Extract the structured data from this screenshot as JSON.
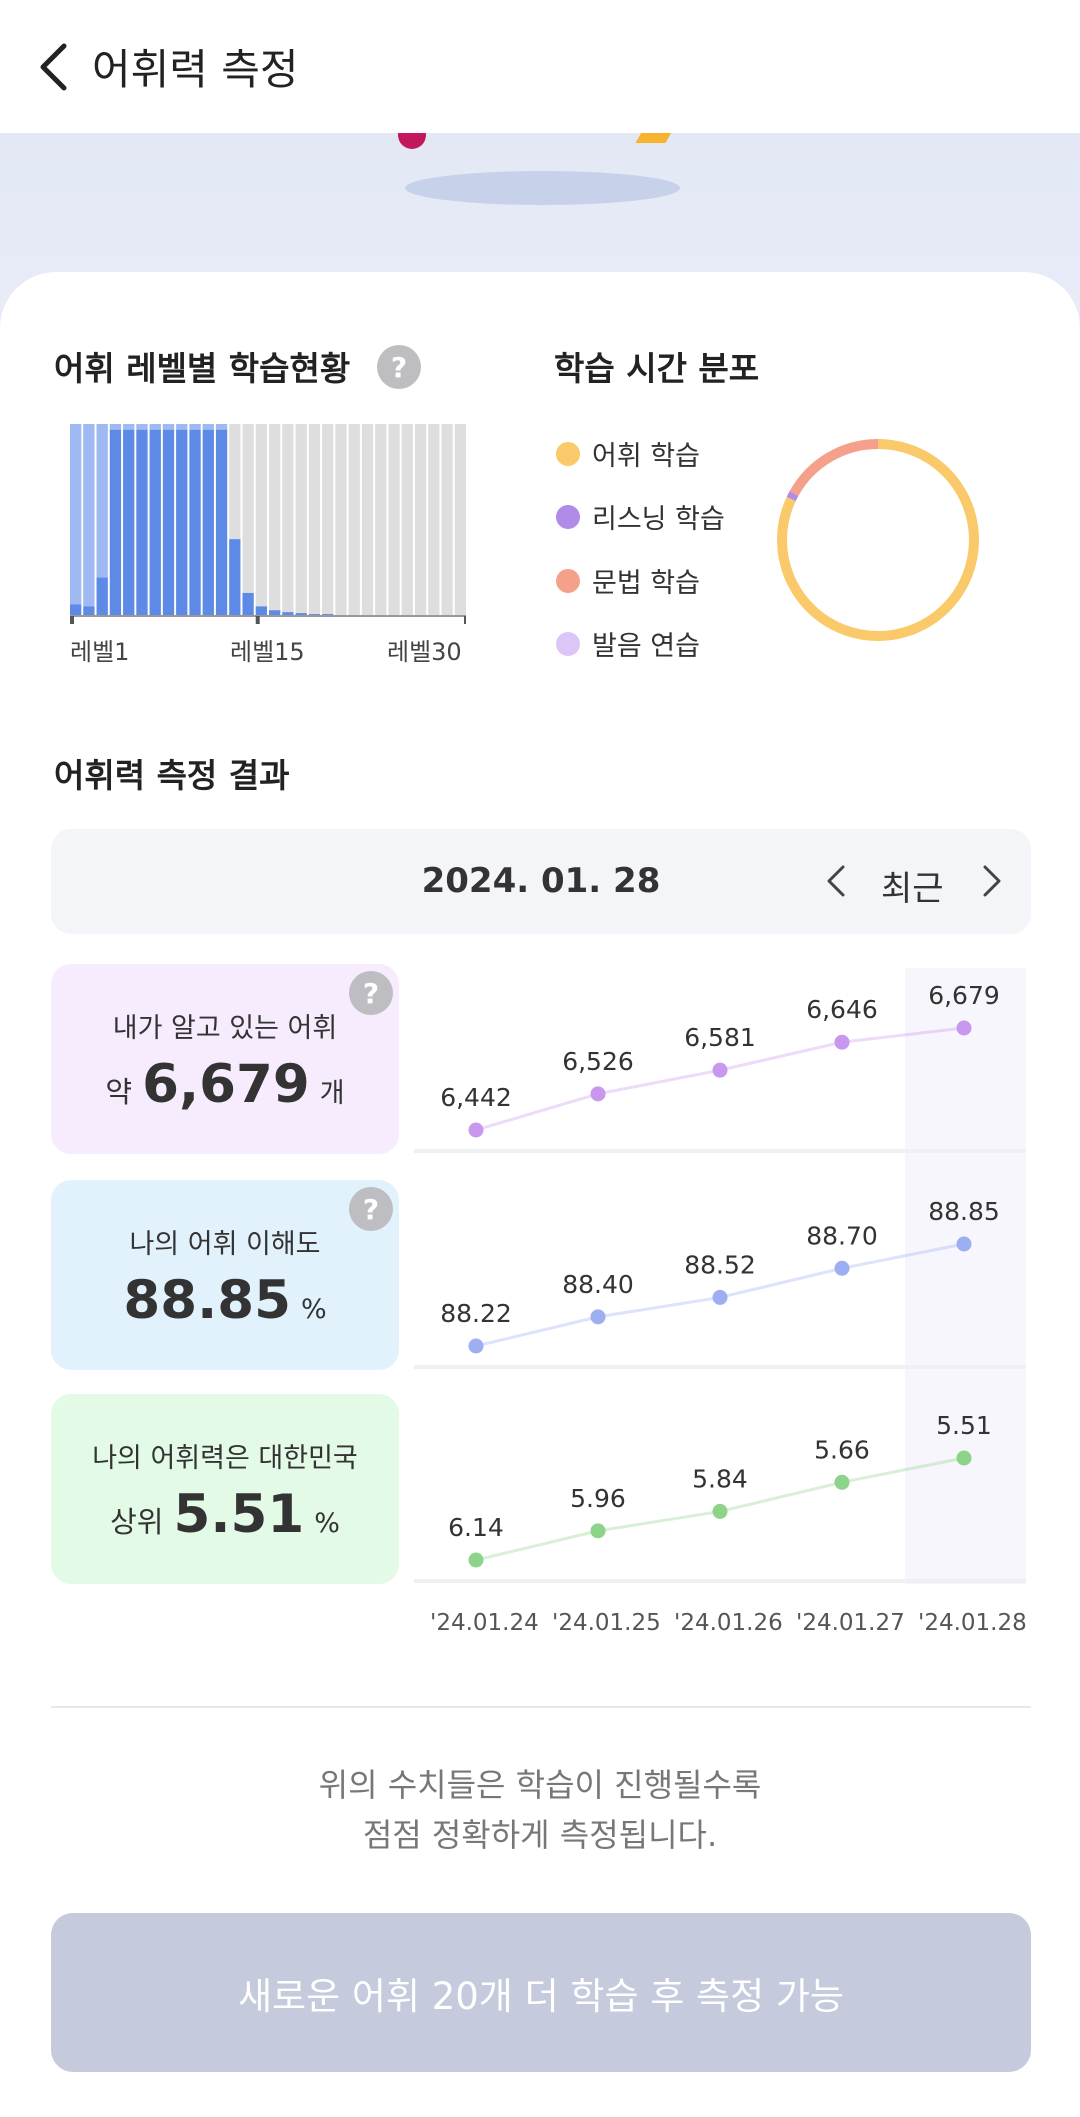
{
  "header": {
    "title": "어휘력 측정"
  },
  "level_status": {
    "title": "어휘 레벨별 학습현황",
    "help": "?",
    "axis_labels": [
      "레벨1",
      "레벨15",
      "레벨30"
    ]
  },
  "time_distribution": {
    "title": "학습 시간 분포",
    "legend": [
      {
        "label": "어휘 학습",
        "color": "#f9c96a"
      },
      {
        "label": "리스닝 학습",
        "color": "#b08be8"
      },
      {
        "label": "문법 학습",
        "color": "#f5a08a"
      },
      {
        "label": "발음 연습",
        "color": "#dcc6f7"
      }
    ],
    "shares": [
      0.82,
      0.01,
      0.17,
      0.0
    ]
  },
  "result": {
    "title": "어휘력 측정 결과",
    "date": "2024. 01. 28",
    "recent_label": "최근"
  },
  "stats": {
    "known_words": {
      "label": "내가 알고 있는 어휘",
      "prefix": "약",
      "value": "6,679",
      "suffix": "개",
      "help": "?"
    },
    "comprehension": {
      "label": "나의 어휘 이해도",
      "value": "88.85",
      "suffix": "%",
      "help": "?"
    },
    "rank": {
      "label": "나의 어휘력은 대한민국",
      "prefix": "상위",
      "value": "5.51",
      "suffix": "%"
    }
  },
  "chart_data": [
    {
      "type": "line",
      "x": [
        "'24.01.24",
        "'24.01.25",
        "'24.01.26",
        "'24.01.27",
        "'24.01.28"
      ],
      "values": [
        6442,
        6526,
        6581,
        6646,
        6679
      ],
      "labels": [
        "6,442",
        "6,526",
        "6,581",
        "6,646",
        "6,679"
      ],
      "color": "#c898ee"
    },
    {
      "type": "line",
      "x": [
        "'24.01.24",
        "'24.01.25",
        "'24.01.26",
        "'24.01.27",
        "'24.01.28"
      ],
      "values": [
        88.22,
        88.4,
        88.52,
        88.7,
        88.85
      ],
      "labels": [
        "88.22",
        "88.40",
        "88.52",
        "88.70",
        "88.85"
      ],
      "color": "#9eaff1"
    },
    {
      "type": "line",
      "x": [
        "'24.01.24",
        "'24.01.25",
        "'24.01.26",
        "'24.01.27",
        "'24.01.28"
      ],
      "values": [
        6.14,
        5.96,
        5.84,
        5.66,
        5.51
      ],
      "labels": [
        "6.14",
        "5.96",
        "5.84",
        "5.66",
        "5.51"
      ],
      "color": "#8ed38a"
    },
    {
      "type": "bar",
      "categories": [
        "1",
        "2",
        "3",
        "4",
        "5",
        "6",
        "7",
        "8",
        "9",
        "10",
        "11",
        "12",
        "13",
        "14",
        "15",
        "16",
        "17",
        "18",
        "19",
        "20",
        "21",
        "22",
        "23",
        "24",
        "25",
        "26",
        "27",
        "28",
        "29",
        "30"
      ],
      "series": [
        {
          "values": [
            0.06,
            0.05,
            0.2,
            0.97,
            0.97,
            0.97,
            0.97,
            0.97,
            0.97,
            0.97,
            0.97,
            0.97,
            0.4,
            0.12,
            0.05,
            0.03,
            0.02,
            0.015,
            0.01,
            0.01,
            0.005,
            0.005,
            0,
            0,
            0,
            0,
            0,
            0,
            0,
            0
          ]
        },
        {
          "values": [
            0.94,
            0.95,
            0.8,
            0.03,
            0.03,
            0.03,
            0.03,
            0.03,
            0.03,
            0.03,
            0.03,
            0.03,
            0.0,
            0.0,
            0.0,
            0,
            0,
            0,
            0,
            0,
            0,
            0,
            0,
            0,
            0,
            0,
            0,
            0,
            0,
            0
          ]
        }
      ],
      "ylim": [
        0,
        1
      ]
    }
  ],
  "footer_note": {
    "line1": "위의 수치들은 학습이 진행될수록",
    "line2": "점점 정확하게 측정됩니다."
  },
  "cta": {
    "label": "새로운 어휘 20개 더 학습 후 측정 가능"
  }
}
